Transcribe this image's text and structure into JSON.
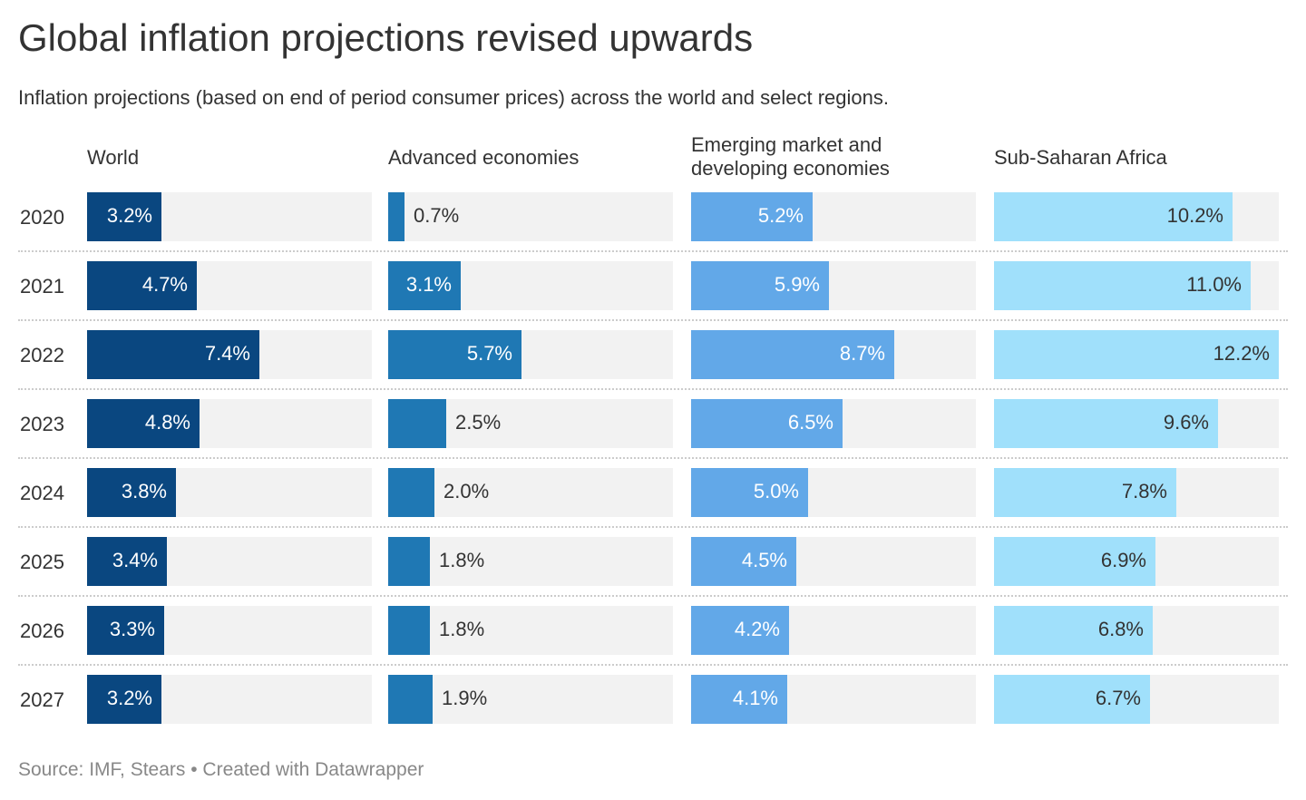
{
  "title": "Global inflation projections revised upwards",
  "subtitle": "Inflation projections (based on end of period consumer prices) across the world and select regions.",
  "source": "Source: IMF, Stears • Created with Datawrapper",
  "chart_data": {
    "type": "bar",
    "orientation": "horizontal",
    "title": "Global inflation projections revised upwards",
    "subtitle": "Inflation projections (based on end of period consumer prices) across the world and select regions.",
    "categories": [
      "2020",
      "2021",
      "2022",
      "2023",
      "2024",
      "2025",
      "2026",
      "2027"
    ],
    "value_suffix": "%",
    "xlim": [
      0,
      12.2
    ],
    "grid": false,
    "series": [
      {
        "name": "World",
        "header_lines": [
          "World"
        ],
        "color": "#0a4780",
        "label_color": "#ffffff",
        "values": [
          3.2,
          4.7,
          7.4,
          4.8,
          3.8,
          3.4,
          3.3,
          3.2
        ],
        "labels": [
          "3.2%",
          "4.7%",
          "7.4%",
          "4.8%",
          "3.8%",
          "3.4%",
          "3.3%",
          "3.2%"
        ]
      },
      {
        "name": "Advanced economies",
        "header_lines": [
          "Advanced economies"
        ],
        "color": "#1f78b4",
        "label_color": "#ffffff",
        "values": [
          0.7,
          3.1,
          5.7,
          2.5,
          2.0,
          1.8,
          1.8,
          1.9
        ],
        "labels": [
          "0.7%",
          "3.1%",
          "5.7%",
          "2.5%",
          "2.0%",
          "1.8%",
          "1.8%",
          "1.9%"
        ]
      },
      {
        "name": "Emerging market and developing economies",
        "header_lines": [
          "Emerging market and",
          "developing economies"
        ],
        "color": "#62a8e8",
        "label_color": "#ffffff",
        "values": [
          5.2,
          5.9,
          8.7,
          6.5,
          5.0,
          4.5,
          4.2,
          4.1
        ],
        "labels": [
          "5.2%",
          "5.9%",
          "8.7%",
          "6.5%",
          "5.0%",
          "4.5%",
          "4.2%",
          "4.1%"
        ]
      },
      {
        "name": "Sub-Saharan Africa",
        "header_lines": [
          "Sub-Saharan Africa"
        ],
        "color": "#a0e0fb",
        "label_color": "#333333",
        "values": [
          10.2,
          11.0,
          12.2,
          9.6,
          7.8,
          6.9,
          6.8,
          6.7
        ],
        "labels": [
          "10.2%",
          "11.0%",
          "12.2%",
          "9.6%",
          "7.8%",
          "6.9%",
          "6.8%",
          "6.7%"
        ]
      }
    ]
  }
}
